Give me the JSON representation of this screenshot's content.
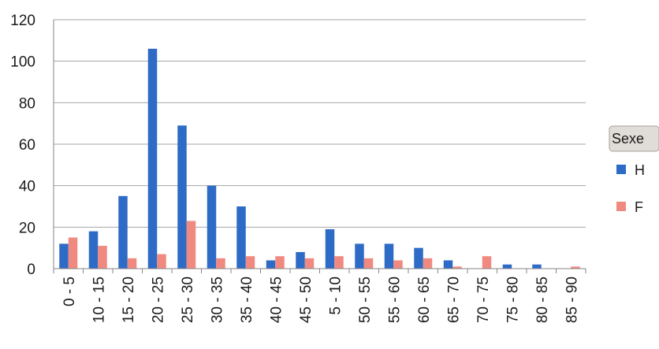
{
  "chart_data": {
    "type": "bar",
    "title": "",
    "xlabel": "",
    "ylabel": "",
    "categories": [
      "0 - 5",
      "10 - 15",
      "15 - 20",
      "20 - 25",
      "25 - 30",
      "30 - 35",
      "35 - 40",
      "40 - 45",
      "45 - 50",
      "5 - 10",
      "50 - 55",
      "55 - 60",
      "60 - 65",
      "65 - 70",
      "70 - 75",
      "75 - 80",
      "80 - 85",
      "85 - 90"
    ],
    "series": [
      {
        "name": "H",
        "color": "#2e6bc6",
        "values": [
          12,
          18,
          35,
          106,
          69,
          40,
          30,
          4,
          8,
          19,
          12,
          12,
          10,
          4,
          0,
          2,
          2,
          0
        ]
      },
      {
        "name": "F",
        "color": "#f08a80",
        "values": [
          15,
          11,
          5,
          7,
          23,
          5,
          6,
          6,
          5,
          6,
          5,
          4,
          5,
          1,
          6,
          0,
          0,
          1
        ]
      }
    ],
    "ylim": [
      0,
      120
    ],
    "yticks": [
      0,
      20,
      40,
      60,
      80,
      100,
      120
    ],
    "grid": true,
    "legend": {
      "title": "Sexe",
      "placement": "right"
    }
  }
}
